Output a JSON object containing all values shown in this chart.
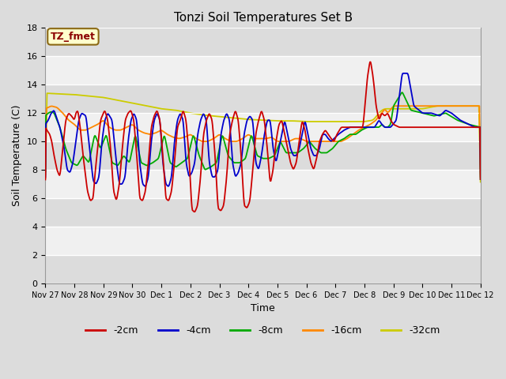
{
  "title": "Tonzi Soil Temperatures Set B",
  "xlabel": "Time",
  "ylabel": "Soil Temperature (C)",
  "ylim": [
    0,
    18
  ],
  "yticks": [
    0,
    2,
    4,
    6,
    8,
    10,
    12,
    14,
    16,
    18
  ],
  "bg_color": "#dcdcdc",
  "band_colors": [
    "#dcdcdc",
    "#f0f0f0"
  ],
  "line_colors": {
    "-2cm": "#cc0000",
    "-4cm": "#0000cc",
    "-8cm": "#00aa00",
    "-16cm": "#ff8800",
    "-32cm": "#cccc00"
  },
  "legend_label": "TZ_fmet",
  "xtick_labels": [
    "Nov 27",
    "Nov 28",
    "Nov 29",
    "Nov 30",
    "Dec 1",
    "Dec 2",
    "Dec 3",
    "Dec 4",
    "Dec 5",
    "Dec 6",
    "Dec 7",
    "Dec 8",
    "Dec 9",
    "Dec 10",
    "Dec 11",
    "Dec 12"
  ],
  "t_2cm": [
    0.0,
    0.05,
    0.15,
    0.22,
    0.3,
    0.4,
    0.5,
    0.55,
    0.65,
    0.7,
    0.8,
    0.9,
    1.0,
    1.05,
    1.12,
    1.2,
    1.3,
    1.45,
    1.55,
    1.65,
    1.7,
    1.8,
    1.9,
    2.0,
    2.05,
    2.15,
    2.25,
    2.35,
    2.45,
    2.55,
    2.65,
    2.75,
    2.85,
    2.95,
    3.05,
    3.15,
    3.25,
    3.35,
    3.45,
    3.55,
    3.65,
    3.75,
    3.85,
    3.95,
    4.05,
    4.15,
    4.25,
    4.35,
    4.45,
    4.55,
    4.65,
    4.75,
    4.85,
    4.95,
    5.05,
    5.15,
    5.25,
    5.35,
    5.45,
    5.55,
    5.65,
    5.75,
    5.85,
    5.95,
    6.05,
    6.15,
    6.25,
    6.35,
    6.45,
    6.55,
    6.65,
    6.75,
    6.85,
    6.95,
    7.05,
    7.15,
    7.25,
    7.35,
    7.45,
    7.55,
    7.65,
    7.75,
    7.85,
    7.95,
    8.05,
    8.15,
    8.25,
    8.35,
    8.45,
    8.55,
    8.65,
    8.75,
    8.85,
    8.95,
    9.05,
    9.15,
    9.25,
    9.35,
    9.45,
    9.55,
    9.65,
    9.75,
    9.85,
    9.95,
    10.05,
    10.2,
    10.35,
    10.5,
    10.65,
    10.8,
    10.95,
    11.1,
    11.2,
    11.3,
    11.4,
    11.5,
    11.6,
    11.7,
    11.8,
    11.9,
    12.0,
    12.2,
    12.4,
    12.6,
    12.8,
    13.0,
    13.2,
    13.4,
    13.6,
    13.8,
    14.0,
    14.2,
    14.4,
    14.6,
    14.8,
    15.0
  ],
  "v_2cm": [
    11.0,
    10.8,
    10.5,
    10.0,
    9.0,
    8.0,
    7.5,
    8.5,
    10.5,
    11.5,
    12.0,
    11.8,
    11.5,
    12.0,
    12.2,
    11.0,
    9.0,
    6.5,
    5.8,
    6.0,
    7.5,
    9.5,
    11.5,
    12.0,
    12.2,
    11.5,
    9.5,
    6.5,
    5.8,
    7.0,
    9.5,
    11.5,
    12.0,
    12.2,
    11.5,
    9.0,
    6.0,
    5.8,
    6.5,
    8.5,
    11.0,
    11.8,
    12.2,
    11.5,
    9.0,
    6.0,
    5.8,
    6.5,
    8.5,
    11.0,
    11.5,
    12.2,
    11.5,
    9.0,
    5.2,
    5.0,
    5.5,
    7.5,
    10.5,
    11.5,
    12.0,
    11.5,
    9.0,
    5.3,
    5.1,
    5.5,
    7.5,
    10.5,
    11.5,
    12.2,
    11.5,
    9.0,
    5.5,
    5.3,
    5.8,
    8.0,
    10.5,
    11.5,
    12.2,
    11.5,
    9.5,
    7.0,
    8.0,
    10.0,
    11.2,
    11.5,
    10.5,
    9.5,
    8.5,
    8.0,
    8.5,
    10.0,
    11.5,
    10.8,
    9.5,
    8.5,
    8.0,
    8.8,
    10.0,
    10.5,
    10.8,
    10.5,
    10.2,
    10.0,
    10.5,
    11.0,
    11.0,
    11.0,
    11.0,
    11.0,
    11.0,
    14.5,
    15.8,
    14.5,
    12.5,
    11.5,
    12.0,
    11.8,
    12.0,
    11.5,
    11.2,
    11.0,
    11.0,
    11.0,
    11.0,
    11.0,
    11.0,
    11.0,
    11.0,
    11.0,
    11.0,
    11.0,
    11.0,
    11.0,
    11.0,
    11.0
  ],
  "t_4cm": [
    0.0,
    0.1,
    0.2,
    0.3,
    0.5,
    0.65,
    0.75,
    0.85,
    0.95,
    1.05,
    1.15,
    1.25,
    1.4,
    1.55,
    1.65,
    1.75,
    1.85,
    1.95,
    2.05,
    2.15,
    2.3,
    2.45,
    2.55,
    2.65,
    2.75,
    2.85,
    2.95,
    3.05,
    3.15,
    3.25,
    3.35,
    3.45,
    3.55,
    3.65,
    3.75,
    3.85,
    3.95,
    4.05,
    4.15,
    4.25,
    4.35,
    4.45,
    4.55,
    4.65,
    4.75,
    4.85,
    4.95,
    5.05,
    5.15,
    5.25,
    5.35,
    5.45,
    5.55,
    5.65,
    5.75,
    5.85,
    5.95,
    6.05,
    6.15,
    6.25,
    6.35,
    6.45,
    6.55,
    6.65,
    6.75,
    6.85,
    6.95,
    7.05,
    7.15,
    7.25,
    7.35,
    7.45,
    7.55,
    7.65,
    7.75,
    7.85,
    7.95,
    8.05,
    8.15,
    8.25,
    8.35,
    8.45,
    8.55,
    8.65,
    8.75,
    8.85,
    8.95,
    9.05,
    9.15,
    9.25,
    9.35,
    9.45,
    9.55,
    9.65,
    9.75,
    9.85,
    9.95,
    10.1,
    10.3,
    10.5,
    10.7,
    10.9,
    11.1,
    11.2,
    11.35,
    11.5,
    11.6,
    11.7,
    11.8,
    11.9,
    12.1,
    12.3,
    12.5,
    12.7,
    13.0,
    13.3,
    13.6,
    13.8,
    14.0,
    14.3,
    14.6,
    14.8,
    15.0
  ],
  "v_4cm": [
    11.2,
    11.5,
    12.0,
    12.2,
    11.0,
    9.5,
    8.0,
    7.8,
    8.5,
    10.0,
    11.5,
    12.0,
    11.8,
    9.0,
    7.2,
    7.0,
    7.5,
    10.0,
    11.5,
    12.0,
    11.5,
    8.5,
    7.0,
    7.0,
    7.5,
    10.0,
    11.5,
    12.0,
    11.5,
    8.5,
    7.0,
    6.8,
    7.5,
    10.0,
    11.5,
    12.0,
    11.5,
    8.5,
    7.0,
    6.8,
    7.5,
    10.0,
    11.5,
    12.0,
    11.5,
    8.5,
    7.5,
    7.8,
    8.5,
    10.5,
    11.5,
    12.0,
    11.5,
    8.5,
    7.5,
    7.5,
    8.0,
    10.5,
    11.5,
    12.0,
    11.5,
    8.5,
    7.5,
    7.8,
    8.5,
    10.5,
    11.5,
    11.8,
    11.5,
    8.5,
    8.0,
    9.0,
    10.5,
    11.5,
    11.5,
    9.5,
    8.5,
    9.5,
    10.5,
    11.5,
    10.5,
    9.5,
    9.0,
    9.0,
    9.5,
    10.5,
    11.5,
    10.5,
    9.5,
    9.0,
    9.0,
    9.5,
    10.5,
    10.5,
    10.2,
    10.0,
    10.2,
    10.5,
    10.8,
    11.0,
    11.0,
    11.0,
    11.0,
    11.0,
    11.0,
    11.5,
    11.2,
    11.0,
    11.0,
    11.0,
    11.5,
    14.8,
    14.8,
    12.5,
    12.0,
    12.0,
    11.8,
    12.2,
    12.0,
    11.5,
    11.2,
    11.0,
    11.0
  ],
  "t_8cm": [
    0.0,
    0.1,
    0.2,
    0.3,
    0.5,
    0.7,
    0.9,
    1.1,
    1.3,
    1.5,
    1.7,
    1.9,
    2.1,
    2.3,
    2.5,
    2.7,
    2.9,
    3.1,
    3.3,
    3.5,
    3.7,
    3.9,
    4.1,
    4.3,
    4.5,
    4.7,
    4.9,
    5.1,
    5.3,
    5.5,
    5.7,
    5.9,
    6.1,
    6.3,
    6.5,
    6.7,
    6.9,
    7.1,
    7.3,
    7.5,
    7.7,
    7.9,
    8.1,
    8.3,
    8.5,
    8.7,
    8.9,
    9.1,
    9.3,
    9.5,
    9.7,
    9.9,
    10.1,
    10.3,
    10.5,
    10.7,
    10.9,
    11.1,
    11.3,
    11.5,
    11.6,
    11.7,
    11.8,
    11.9,
    12.0,
    12.3,
    12.6,
    13.0,
    13.4,
    13.8,
    14.2,
    14.6,
    15.0
  ],
  "v_8cm": [
    11.8,
    12.0,
    12.1,
    12.0,
    11.0,
    9.5,
    8.5,
    8.3,
    9.0,
    8.5,
    10.5,
    9.5,
    10.5,
    8.5,
    8.3,
    9.0,
    8.5,
    10.5,
    8.5,
    8.3,
    8.5,
    8.8,
    10.5,
    8.5,
    8.2,
    8.5,
    8.8,
    10.5,
    9.0,
    8.0,
    8.2,
    8.5,
    10.5,
    9.0,
    8.5,
    8.5,
    8.8,
    10.5,
    9.0,
    8.8,
    8.8,
    9.0,
    10.0,
    9.2,
    9.2,
    9.2,
    9.5,
    10.0,
    9.5,
    9.2,
    9.2,
    9.5,
    10.0,
    10.2,
    10.5,
    10.5,
    10.8,
    11.0,
    11.0,
    11.0,
    11.2,
    11.0,
    11.0,
    11.2,
    12.5,
    13.5,
    12.2,
    12.0,
    11.8,
    12.0,
    11.5,
    11.2,
    11.0
  ],
  "t_16cm": [
    0.0,
    0.2,
    0.4,
    0.6,
    0.8,
    1.0,
    1.2,
    1.4,
    1.6,
    1.8,
    2.0,
    2.2,
    2.4,
    2.6,
    2.8,
    3.0,
    3.2,
    3.4,
    3.6,
    3.8,
    4.0,
    4.2,
    4.4,
    4.6,
    4.8,
    5.0,
    5.2,
    5.4,
    5.6,
    5.8,
    6.0,
    6.2,
    6.4,
    6.6,
    6.8,
    7.0,
    7.2,
    7.4,
    7.6,
    7.8,
    8.0,
    8.2,
    8.4,
    8.6,
    8.8,
    9.0,
    9.2,
    9.4,
    9.6,
    9.8,
    10.0,
    10.2,
    10.4,
    10.6,
    10.8,
    11.0,
    11.2,
    11.4,
    11.5,
    11.6,
    11.7,
    11.8,
    12.0,
    12.5,
    13.0,
    13.5,
    14.0,
    14.5,
    15.0
  ],
  "v_16cm": [
    12.3,
    12.5,
    12.4,
    12.0,
    11.5,
    11.2,
    10.8,
    10.8,
    11.0,
    11.2,
    11.5,
    11.0,
    10.8,
    10.8,
    11.0,
    11.2,
    10.8,
    10.6,
    10.5,
    10.6,
    10.8,
    10.5,
    10.3,
    10.2,
    10.3,
    10.5,
    10.2,
    10.0,
    10.0,
    10.2,
    10.5,
    10.2,
    10.0,
    10.0,
    10.2,
    10.5,
    10.2,
    10.2,
    10.2,
    10.3,
    10.0,
    10.0,
    10.0,
    10.2,
    10.2,
    10.0,
    10.0,
    10.0,
    10.0,
    10.0,
    10.0,
    10.0,
    10.2,
    10.5,
    10.8,
    11.0,
    11.2,
    11.5,
    11.8,
    12.0,
    12.3,
    12.0,
    12.5,
    12.5,
    12.5,
    12.5,
    12.5,
    12.5,
    12.5
  ],
  "t_32cm": [
    0.0,
    0.5,
    1.0,
    1.5,
    2.0,
    2.5,
    3.0,
    3.5,
    4.0,
    4.5,
    5.0,
    5.5,
    6.0,
    6.5,
    7.0,
    7.5,
    8.0,
    8.5,
    9.0,
    9.5,
    10.0,
    10.5,
    11.0,
    11.3,
    11.5,
    11.6,
    11.7,
    11.8,
    11.9,
    12.0,
    12.5,
    13.0,
    13.5,
    14.0,
    14.5,
    15.0
  ],
  "v_32cm": [
    13.4,
    13.35,
    13.3,
    13.2,
    13.1,
    12.9,
    12.7,
    12.5,
    12.3,
    12.2,
    12.0,
    11.85,
    11.75,
    11.65,
    11.55,
    11.5,
    11.45,
    11.45,
    11.4,
    11.4,
    11.4,
    11.4,
    11.4,
    11.5,
    12.0,
    12.2,
    12.3,
    12.3,
    12.3,
    12.3,
    12.3,
    12.3,
    12.5,
    12.5,
    12.5,
    12.5
  ]
}
